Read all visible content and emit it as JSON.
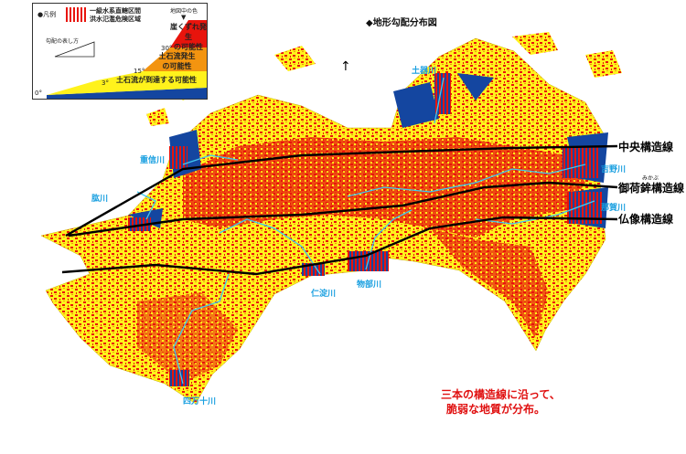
{
  "title": "◆地形勾配分布図",
  "legend": {
    "marker": "●凡例",
    "stripe_label_1": "一級水系直轄区間",
    "stripe_label_2": "洪水氾濫危険区域",
    "map_color_label": "地図中の色",
    "slope_howto": "勾配の表し方",
    "angles": [
      "0°",
      "3°",
      "15°",
      "30°"
    ],
    "bands": [
      {
        "label": "崖くずれ発生の可能性",
        "line1": "崖くずれ発生",
        "line2": "の可能性",
        "color": "#e8140c"
      },
      {
        "label": "土石流発生の可能性",
        "line1": "土石流発生",
        "line2": "の可能性",
        "color": "#f39410"
      },
      {
        "label": "土石流が到達する可能性",
        "line1": "土石流が到達する可能性",
        "color": "#fff21c"
      },
      {
        "label": "0-3°",
        "color": "#1446a0"
      }
    ]
  },
  "rivers": [
    "土器川",
    "重信川",
    "肱川",
    "吉野川",
    "那賀川",
    "仁淀川",
    "物部川",
    "四万十川"
  ],
  "faults": {
    "chuo": "中央構造線",
    "mikabu": "御荷鉾構造線",
    "mikabu_furigana": "みかぶ",
    "butsuzo": "仏像構造線"
  },
  "note": {
    "line1": "三本の構造線に沿って、",
    "line2": "脆弱な地質が分布。"
  },
  "colors": {
    "steep": "#e8140c",
    "medium": "#f39410",
    "gentle": "#fff21c",
    "flat": "#1446a0",
    "river": "#40c8f0",
    "fault": "#000000"
  }
}
